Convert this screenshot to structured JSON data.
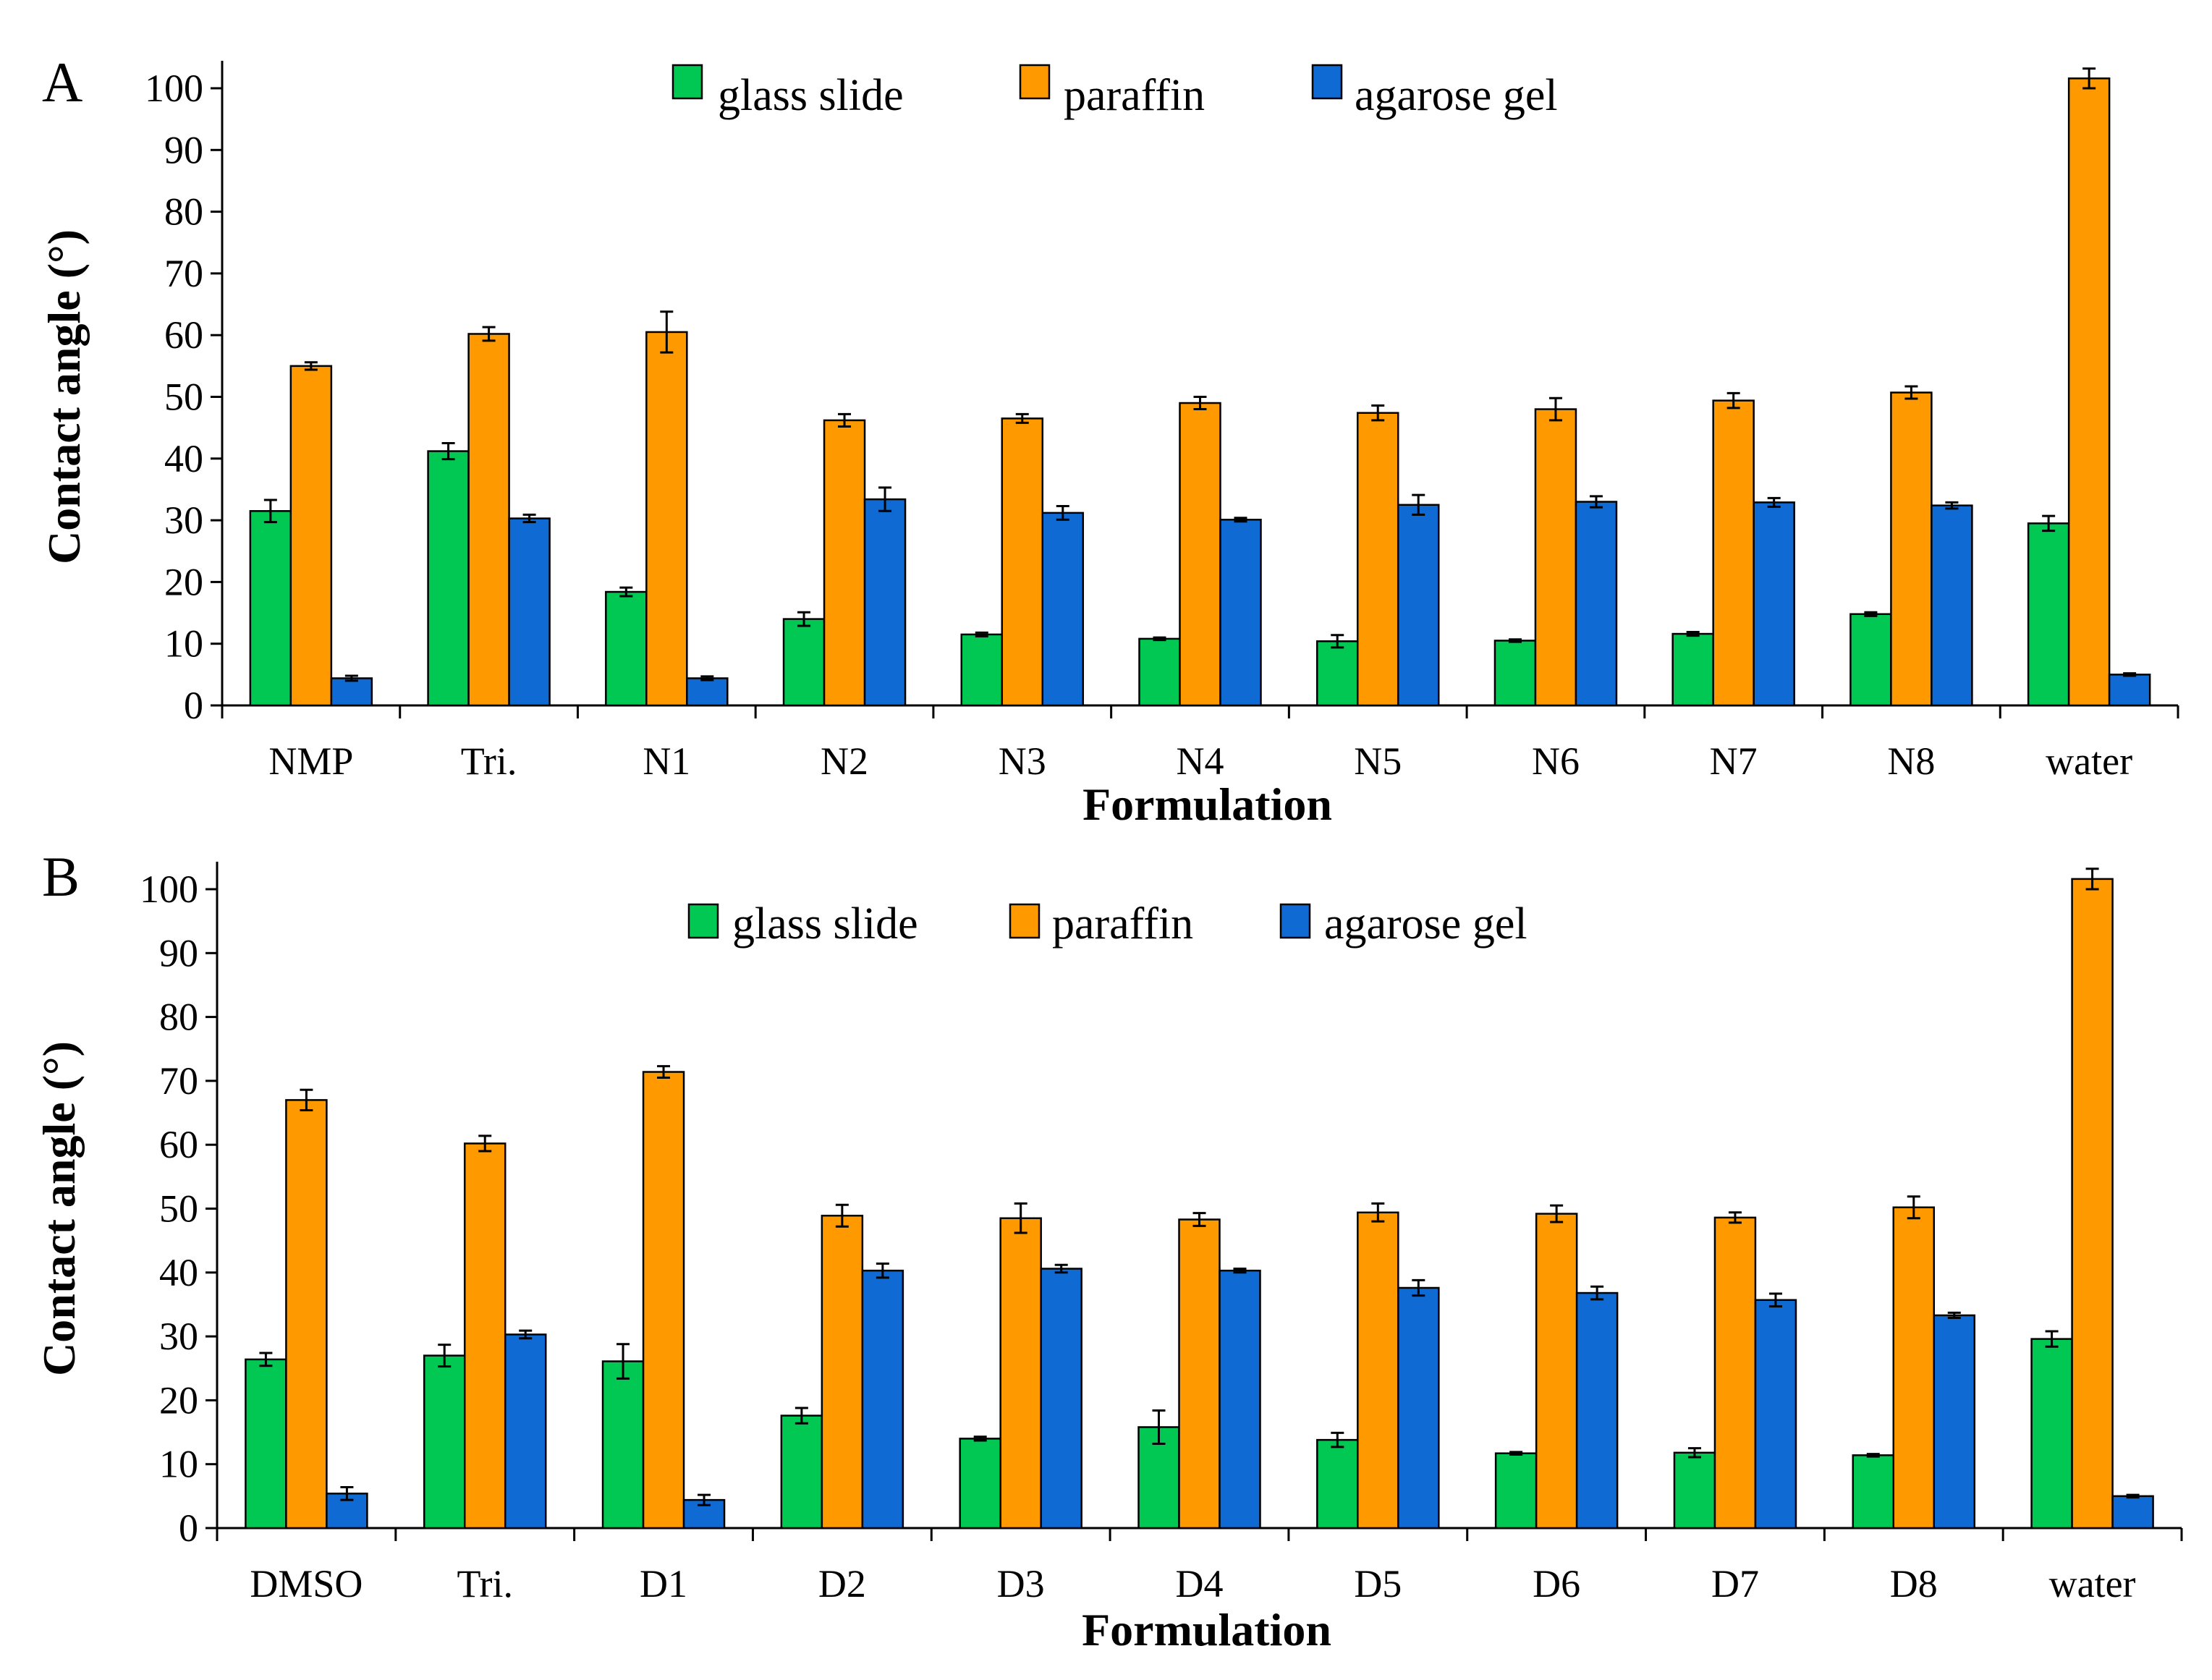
{
  "figure": {
    "panels": [
      "A",
      "B"
    ]
  },
  "chart_data": [
    {
      "panel": "A",
      "type": "bar",
      "xlabel": "Formulation",
      "ylabel": "Contact angle (°)",
      "ylim": [
        0,
        100
      ],
      "yticks": [
        0,
        10,
        20,
        30,
        40,
        50,
        60,
        70,
        80,
        90,
        100
      ],
      "categories": [
        "NMP",
        "Tri.",
        "N1",
        "N2",
        "N3",
        "N4",
        "N5",
        "N6",
        "N7",
        "N8",
        "water"
      ],
      "series": [
        {
          "name": "glass slide",
          "color": "#00c853",
          "values": [
            31.5,
            41.2,
            18.4,
            14.0,
            11.5,
            10.8,
            10.4,
            10.5,
            11.6,
            14.8,
            29.5
          ],
          "errors": [
            1.8,
            1.3,
            0.7,
            1.1,
            0.3,
            0.2,
            1.0,
            0.2,
            0.3,
            0.3,
            1.2
          ]
        },
        {
          "name": "paraffin",
          "color": "#ff9900",
          "values": [
            55.0,
            60.2,
            60.5,
            46.2,
            46.5,
            49.0,
            47.4,
            48.0,
            49.4,
            50.7,
            101.6
          ],
          "errors": [
            0.6,
            1.1,
            3.3,
            1.0,
            0.7,
            1.0,
            1.2,
            1.8,
            1.2,
            1.0,
            1.6
          ]
        },
        {
          "name": "agarose gel",
          "color": "#0f6ad3",
          "values": [
            4.4,
            30.3,
            4.4,
            33.4,
            31.2,
            30.1,
            32.5,
            33.0,
            32.9,
            32.4,
            5.0
          ],
          "errors": [
            0.4,
            0.6,
            0.3,
            1.9,
            1.1,
            0.3,
            1.6,
            0.9,
            0.7,
            0.5,
            0.2
          ]
        }
      ]
    },
    {
      "panel": "B",
      "type": "bar",
      "xlabel": "Formulation",
      "ylabel": "Contact angle (°)",
      "ylim": [
        0,
        100
      ],
      "yticks": [
        0,
        10,
        20,
        30,
        40,
        50,
        60,
        70,
        80,
        90,
        100
      ],
      "categories": [
        "DMSO",
        "Tri.",
        "D1",
        "D2",
        "D3",
        "D4",
        "D5",
        "D6",
        "D7",
        "D8",
        "water"
      ],
      "series": [
        {
          "name": "glass slide",
          "color": "#00c853",
          "values": [
            26.4,
            27.0,
            26.1,
            17.6,
            14.0,
            15.8,
            13.8,
            11.7,
            11.8,
            11.4,
            29.6
          ],
          "errors": [
            1.0,
            1.7,
            2.7,
            1.2,
            0.3,
            2.6,
            1.1,
            0.2,
            0.7,
            0.2,
            1.2
          ]
        },
        {
          "name": "paraffin",
          "color": "#ff9900",
          "values": [
            67.0,
            60.2,
            71.4,
            48.9,
            48.5,
            48.3,
            49.4,
            49.2,
            48.6,
            50.2,
            101.6
          ],
          "errors": [
            1.6,
            1.2,
            0.9,
            1.7,
            2.3,
            1.0,
            1.4,
            1.3,
            0.8,
            1.7,
            1.6
          ]
        },
        {
          "name": "agarose gel",
          "color": "#0f6ad3",
          "values": [
            5.4,
            30.3,
            4.4,
            40.3,
            40.6,
            40.3,
            37.6,
            36.8,
            35.7,
            33.3,
            5.0
          ],
          "errors": [
            1.0,
            0.6,
            0.8,
            1.1,
            0.6,
            0.3,
            1.2,
            1.0,
            1.0,
            0.4,
            0.2
          ]
        }
      ]
    }
  ]
}
